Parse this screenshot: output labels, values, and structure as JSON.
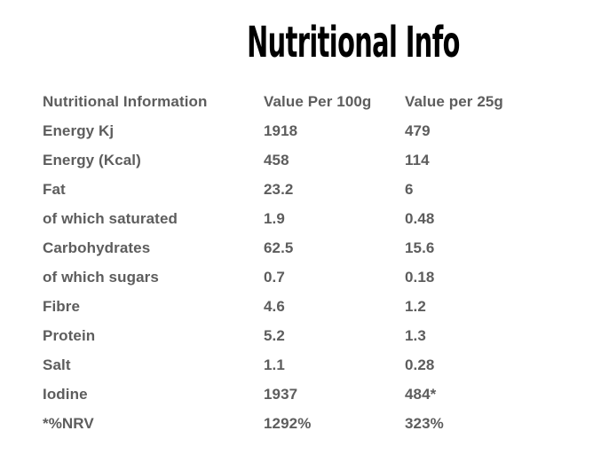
{
  "title": "Nutritional Info",
  "table": {
    "headers": {
      "label": "Nutritional Information",
      "per100g": "Value Per 100g",
      "per25g": "Value per 25g"
    },
    "rows": [
      {
        "label": "Energy Kj",
        "per100g": "1918",
        "per25g": "479"
      },
      {
        "label": "Energy (Kcal)",
        "per100g": "458",
        "per25g": "114"
      },
      {
        "label": "Fat",
        "per100g": "23.2",
        "per25g": "6"
      },
      {
        "label": "of which saturated",
        "per100g": "1.9",
        "per25g": "0.48"
      },
      {
        "label": "Carbohydrates",
        "per100g": "62.5",
        "per25g": "15.6"
      },
      {
        "label": "of which sugars",
        "per100g": "0.7",
        "per25g": "0.18"
      },
      {
        "label": "Fibre",
        "per100g": "4.6",
        "per25g": "1.2"
      },
      {
        "label": "Protein",
        "per100g": "5.2",
        "per25g": "1.3"
      },
      {
        "label": "Salt",
        "per100g": "1.1",
        "per25g": "0.28"
      },
      {
        "label": "Iodine",
        "per100g": "1937",
        "per25g": "484*"
      },
      {
        "label": "*%NRV",
        "per100g": "1292%",
        "per25g": "323%"
      }
    ]
  },
  "colors": {
    "background": "#ffffff",
    "title_text": "#000000",
    "body_text": "#5d5d5d"
  }
}
